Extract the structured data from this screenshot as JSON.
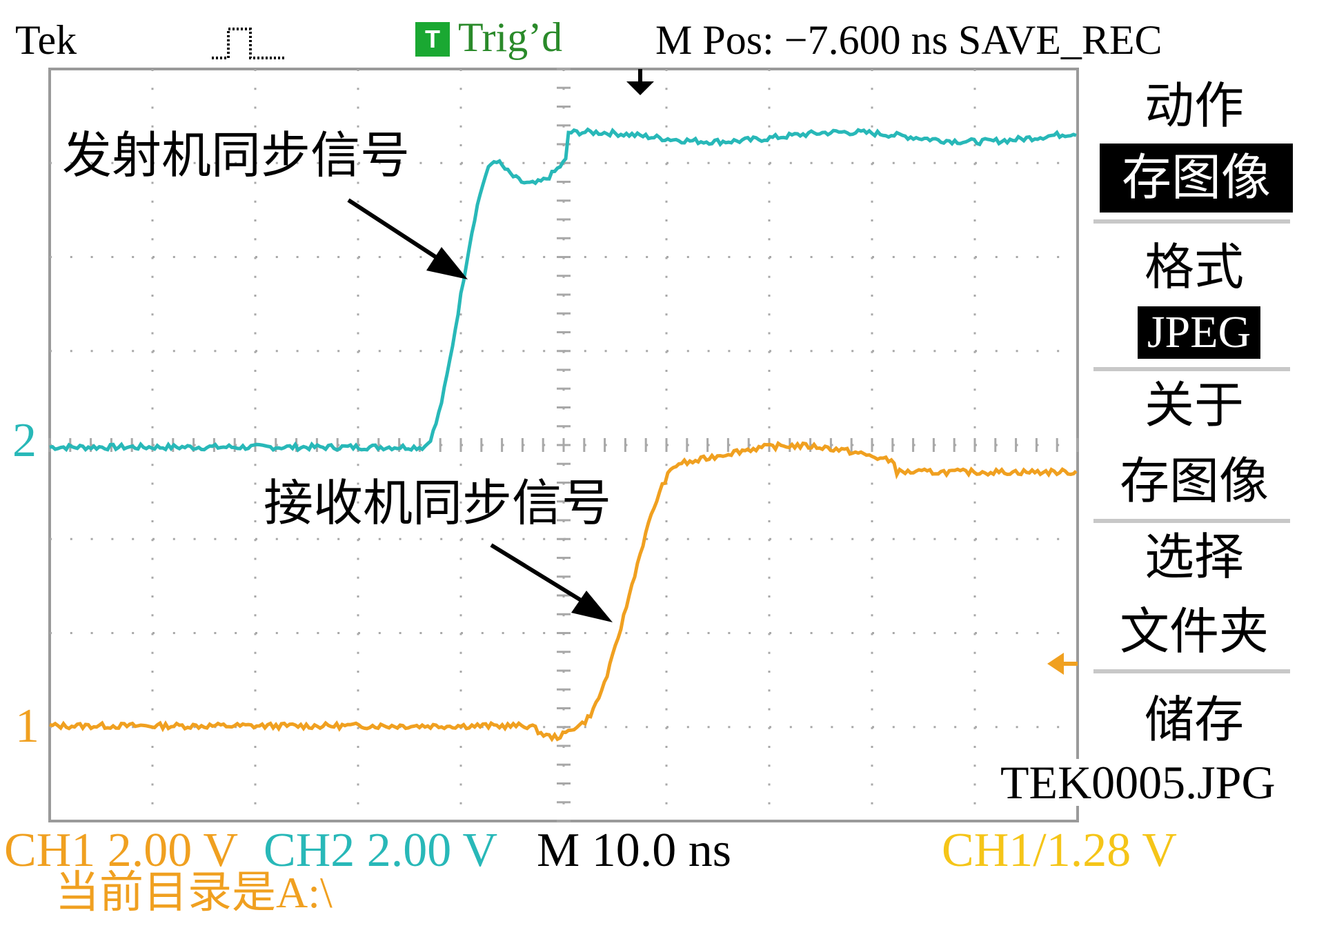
{
  "header": {
    "brand": "Tek",
    "acq_icon": "pulse-icon",
    "trig_icon_letter": "T",
    "trig_status": "Trig’d",
    "mpos": "M Pos: −7.600 ns SAVE_REC"
  },
  "annotations": {
    "tx": "发射机同步信号",
    "rx": "接收机同步信号"
  },
  "markers": {
    "ch2": "2",
    "ch1": "1"
  },
  "side_menu": {
    "action_label": "动作",
    "action_value": "存图像",
    "format_label": "格式",
    "format_value": "JPEG",
    "about_line1": "关于",
    "about_line2": "存图像",
    "select_line1": "选择",
    "select_line2": "文件夹",
    "save_label": "储存",
    "save_file": "TEK0005.JPG"
  },
  "footer": {
    "ch1": "CH1 2.00 V",
    "ch2": "CH2 2.00 V",
    "timebase": "M 10.0 ns",
    "trigger": "CH1/1.28 V",
    "directory": "当前目录是A:\\"
  },
  "colors": {
    "ch1": "#f0a020",
    "ch2": "#28b8b8",
    "trigger": "#f5c518",
    "trig_green": "#2a8a2a",
    "trig_box": "#1aa832",
    "grid": "#9a9a9a"
  },
  "waveforms": {
    "ch2_rise_center_ns": -7.6,
    "ch2_low_div": 0.0,
    "ch2_high_div": 3.3,
    "ch1_rise_center_ns": 10.0,
    "ch1_low_div": 0.0,
    "ch1_high_div": 2.8
  }
}
